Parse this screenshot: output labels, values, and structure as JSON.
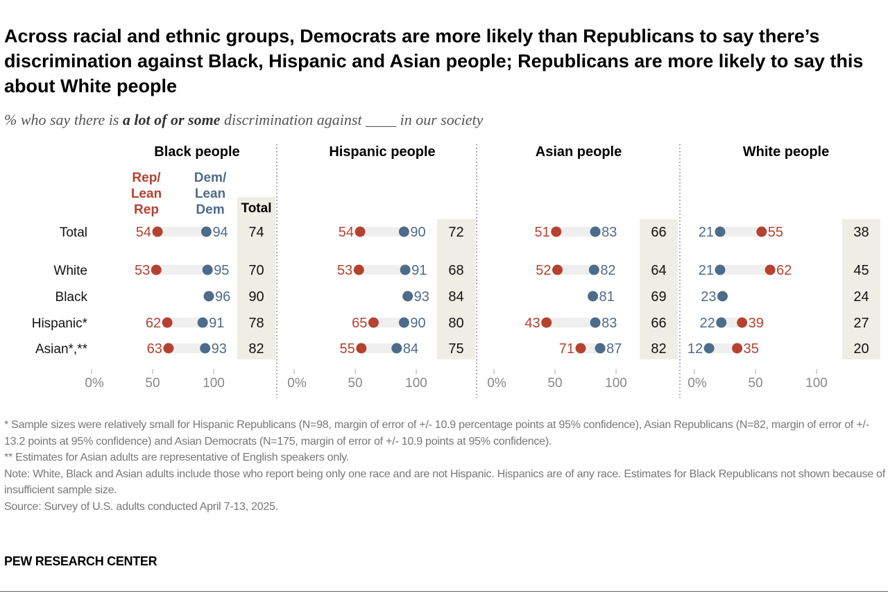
{
  "title": "Across racial and ethnic groups, Democrats are more likely than Republicans to say there’s discrimination against Black, Hispanic and Asian people; Republicans are more likely to say this about White people",
  "subtitle": {
    "pre": "% who say there is ",
    "bold": "a lot of or some",
    "post": " discrimination against ____ in our society"
  },
  "colors": {
    "rep": "#b5412f",
    "dem": "#4d6b8a",
    "bar": "#efefef",
    "total_bg": "#eeeee4",
    "axis_text": "#888888"
  },
  "chart_data": {
    "type": "dot-range",
    "legend": {
      "rep": "Rep/ Lean Rep",
      "dem": "Dem/ Lean Dem",
      "total": "Total"
    },
    "rows": [
      "Total",
      "White",
      "Black",
      "Hispanic*",
      "Asian*,**"
    ],
    "xlim": [
      0,
      100
    ],
    "x_ticks": [
      "0%",
      "50",
      "100"
    ],
    "x_tick_values": [
      0,
      50,
      100
    ],
    "panels": [
      {
        "title": "Black people",
        "rep": [
          54,
          53,
          null,
          62,
          63
        ],
        "dem": [
          94,
          95,
          96,
          91,
          93
        ],
        "total": [
          74,
          70,
          90,
          78,
          82
        ]
      },
      {
        "title": "Hispanic people",
        "rep": [
          54,
          53,
          null,
          65,
          55
        ],
        "dem": [
          90,
          91,
          93,
          90,
          84
        ],
        "total": [
          72,
          68,
          84,
          80,
          75
        ]
      },
      {
        "title": "Asian people",
        "rep": [
          51,
          52,
          null,
          43,
          71
        ],
        "dem": [
          83,
          82,
          81,
          83,
          87
        ],
        "total": [
          66,
          64,
          69,
          66,
          82
        ]
      },
      {
        "title": "White people",
        "rep": [
          55,
          62,
          null,
          39,
          35
        ],
        "dem": [
          21,
          21,
          23,
          22,
          12
        ],
        "total": [
          38,
          45,
          24,
          27,
          20
        ]
      }
    ]
  },
  "notes": [
    "* Sample sizes were relatively small for Hispanic Republicans (N=98, margin of error of +/- 10.9 percentage points at 95% confidence), Asian Republicans (N=82, margin of error of +/- 13.2 points at 95% confidence) and Asian Democrats (N=175, margin of error of +/- 10.9 points at 95% confidence).",
    "** Estimates for Asian adults are representative of English speakers only.",
    "Note: White, Black and Asian adults include those who report being only one race and are not Hispanic. Hispanics are of any race.  Estimates for Black Republicans not shown because of insufficient sample size.",
    "Source: Survey of U.S. adults conducted April 7-13, 2025."
  ],
  "brand": "PEW RESEARCH CENTER"
}
